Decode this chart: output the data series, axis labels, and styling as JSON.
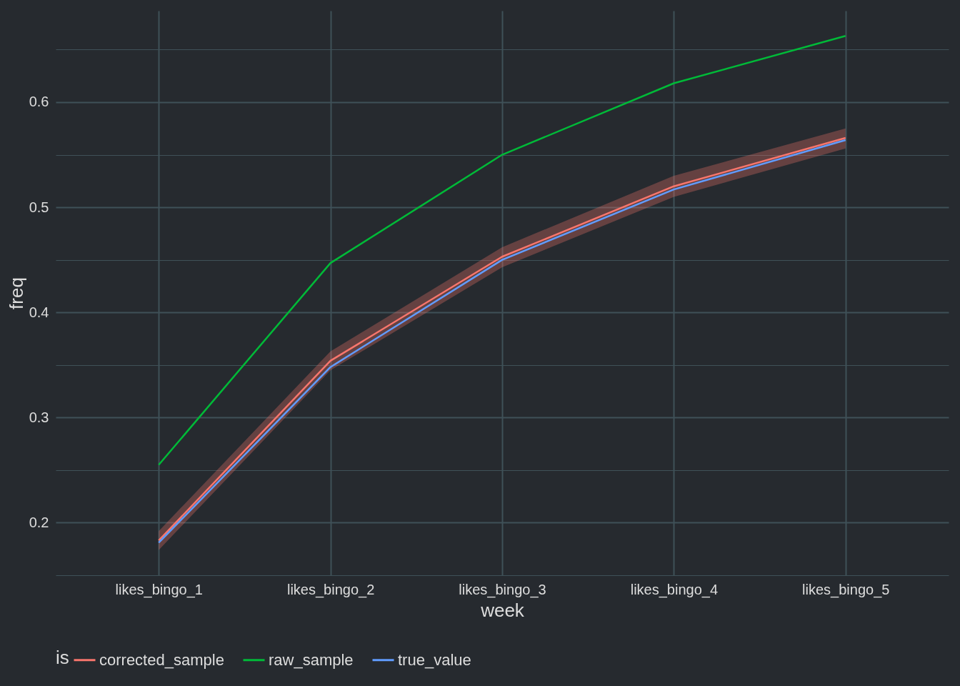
{
  "chart_data": {
    "type": "line",
    "xlabel": "week",
    "ylabel": "freq",
    "legend_title": "is",
    "categories": [
      "likes_bingo_1",
      "likes_bingo_2",
      "likes_bingo_3",
      "likes_bingo_4",
      "likes_bingo_5"
    ],
    "series": [
      {
        "name": "corrected_sample",
        "color": "#f8766d",
        "values": [
          0.183,
          0.354,
          0.453,
          0.52,
          0.566
        ],
        "lower": [
          0.174,
          0.345,
          0.443,
          0.51,
          0.556
        ],
        "upper": [
          0.192,
          0.363,
          0.462,
          0.53,
          0.575
        ]
      },
      {
        "name": "raw_sample",
        "color": "#00ba38",
        "values": [
          0.255,
          0.447,
          0.55,
          0.618,
          0.663
        ]
      },
      {
        "name": "true_value",
        "color": "#619cff",
        "values": [
          0.181,
          0.348,
          0.45,
          0.517,
          0.564
        ]
      }
    ],
    "ylim": [
      0.15,
      0.687
    ],
    "yticks": [
      {
        "value": 0.15,
        "label": null
      },
      0.2,
      {
        "value": 0.25,
        "label": null
      },
      0.3,
      {
        "value": 0.35,
        "label": null
      },
      0.4,
      {
        "value": 0.45,
        "label": null
      },
      0.5,
      {
        "value": 0.55,
        "label": null
      },
      0.6,
      {
        "value": 0.65,
        "label": null
      }
    ],
    "grid": true,
    "legend": "bottom",
    "line_style": "solid",
    "marker": "none"
  }
}
